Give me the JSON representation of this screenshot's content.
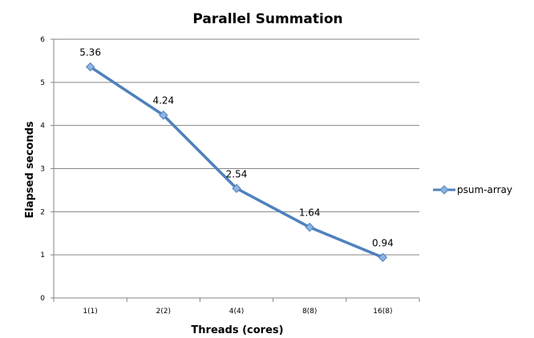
{
  "chart_data": {
    "type": "line",
    "title": "Parallel Summation",
    "xlabel": "Threads (cores)",
    "ylabel": "Elapsed seconds",
    "categories": [
      "1(1)",
      "2(2)",
      "4(4)",
      "8(8)",
      "16(8)"
    ],
    "series": [
      {
        "name": "psum-array",
        "values": [
          5.36,
          4.24,
          2.54,
          1.64,
          0.94
        ],
        "color": "#4f81bd",
        "marker_color": "#8db3e2"
      }
    ],
    "data_labels": [
      "5.36",
      "4.24",
      "2.54",
      "1.64",
      "0.94"
    ],
    "ylim": [
      0,
      6
    ],
    "yticks": [
      0,
      1,
      2,
      3,
      4,
      5,
      6
    ],
    "grid": true,
    "legend_position": "right"
  }
}
